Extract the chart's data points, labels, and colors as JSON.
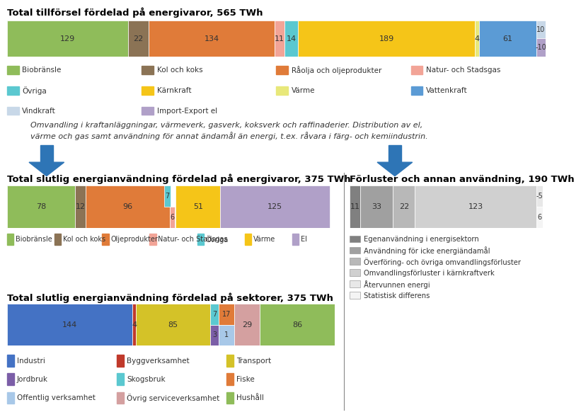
{
  "title1": "Total tillförsel fördelad på energivaror, 565 TWh",
  "title2": "Total slutlig energianvändning fördelad på energivaror, 375 TWh",
  "title3": "Förluster och annan användning, 190 TWh",
  "title4": "Total slutlig energianvändning fördelad på sektorer, 375 TWh",
  "italic_text_line1": "Omvandling i kraftanläggningar, värmeverk, gasverk, koksverk och raffinaderier. Distribution av el,",
  "italic_text_line2": "värme och gas samt användning för annat ändamål än energi, t.ex. råvara i färg- och kemiindustrin.",
  "bar1": {
    "values": [
      129,
      22,
      134,
      11,
      14,
      189,
      4,
      61,
      10,
      -10
    ],
    "colors": [
      "#8fbc5a",
      "#8b7355",
      "#e07b39",
      "#f2a497",
      "#5bc8d0",
      "#f5c518",
      "#e8e87a",
      "#5b9bd5",
      "#c8d8e8",
      "#b0a0c8"
    ],
    "labels": [
      "Biobränsle",
      "Kol och koks",
      "Råolja och oljeprodukter",
      "Natur- och Stadsgas",
      "Övriga",
      "Kärnkraft",
      "Värme",
      "Vattenkraft",
      "Vindkraft",
      "Import-Export el"
    ]
  },
  "bar2": {
    "values": [
      78,
      12,
      96,
      6,
      7,
      51,
      125
    ],
    "colors": [
      "#8fbc5a",
      "#8b7355",
      "#e07b39",
      "#f2a497",
      "#5bc8d0",
      "#f5c518",
      "#b0a0c8"
    ],
    "labels": [
      "Biobränsle",
      "Kol och koks",
      "Oljeprodukter",
      "Natur- och Stadsgas",
      "Övriga",
      "Värme",
      "El"
    ]
  },
  "bar3": {
    "values": [
      11,
      33,
      22,
      123,
      -5,
      6
    ],
    "colors": [
      "#808080",
      "#a0a0a0",
      "#b8b8b8",
      "#d0d0d0",
      "#e8e8e8",
      "#f4f4f4"
    ],
    "labels": [
      "Egenanvändning i energisektorn",
      "Användning för icke energiändamål",
      "Överföring- och övriga omvandlingsförluster",
      "Omvandlingsförluster i kärnkraftverk",
      "Återvunnen energi",
      "Statistisk differens"
    ]
  },
  "bar4": {
    "values": [
      144,
      4,
      85,
      3,
      7,
      17,
      1,
      29,
      86
    ],
    "colors": [
      "#4472c4",
      "#c0392b",
      "#d4c228",
      "#7b5ea7",
      "#5bc8d0",
      "#e07b39",
      "#a8c8e8",
      "#d4a0a0",
      "#8fbc5a"
    ],
    "labels": [
      "Industri",
      "Byggverksamhet",
      "Transport",
      "Jordbruk",
      "Skogsbruk",
      "Fiske",
      "Offentlig verksamhet",
      "Övrig serviceverksamhet",
      "Hushåll"
    ]
  },
  "arrow_color": "#2e75b6",
  "background": "#ffffff",
  "divider_color": "#888888"
}
